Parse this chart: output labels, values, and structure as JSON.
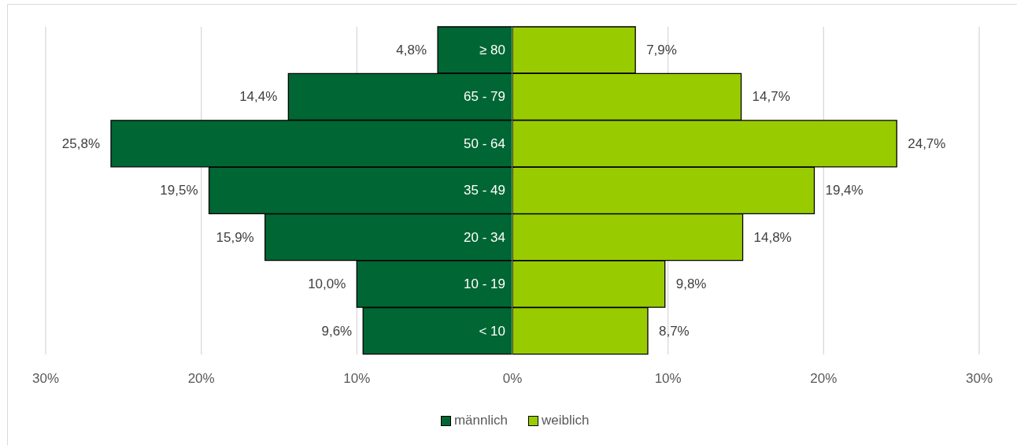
{
  "chart_data": [
    {
      "type": "bar",
      "orientation": "horizontal",
      "categories": [
        "≥ 80",
        "65 - 79",
        "50 - 64",
        "35 - 49",
        "20 - 34",
        "10 - 19",
        "< 10"
      ],
      "series": [
        {
          "name": "männlich",
          "color": "#006633",
          "values": [
            4.8,
            14.4,
            25.8,
            19.5,
            15.9,
            10.0,
            9.6
          ],
          "value_labels": [
            "4,8%",
            "14,4%",
            "25,8%",
            "19,5%",
            "15,9%",
            "10,0%",
            "9,6%"
          ]
        }
      ],
      "xlim": [
        30,
        0
      ],
      "xticks": [
        {
          "value": 30,
          "label": "30%"
        },
        {
          "value": 20,
          "label": "20%"
        },
        {
          "value": 10,
          "label": "10%"
        },
        {
          "value": 0,
          "label": "0%"
        }
      ],
      "grid": "x",
      "legend": "bottom right"
    },
    {
      "type": "bar",
      "orientation": "horizontal",
      "categories": [
        null,
        null,
        null,
        null,
        null,
        null,
        null
      ],
      "series": [
        {
          "name": "weiblich",
          "color": "#99cc00",
          "values": [
            7.9,
            14.7,
            24.7,
            19.4,
            14.8,
            9.8,
            8.7
          ],
          "value_labels": [
            "7,9%",
            "14,7%",
            "24,7%",
            "19,4%",
            "14,8%",
            "9,8%",
            "8,7%"
          ]
        }
      ],
      "xlim": [
        0,
        30
      ],
      "xticks": [
        {
          "value": 10,
          "label": "10%"
        },
        {
          "value": 20,
          "label": "20%"
        },
        {
          "value": 30,
          "label": "30%"
        }
      ],
      "grid": "x",
      "legend": "bottom left"
    }
  ]
}
